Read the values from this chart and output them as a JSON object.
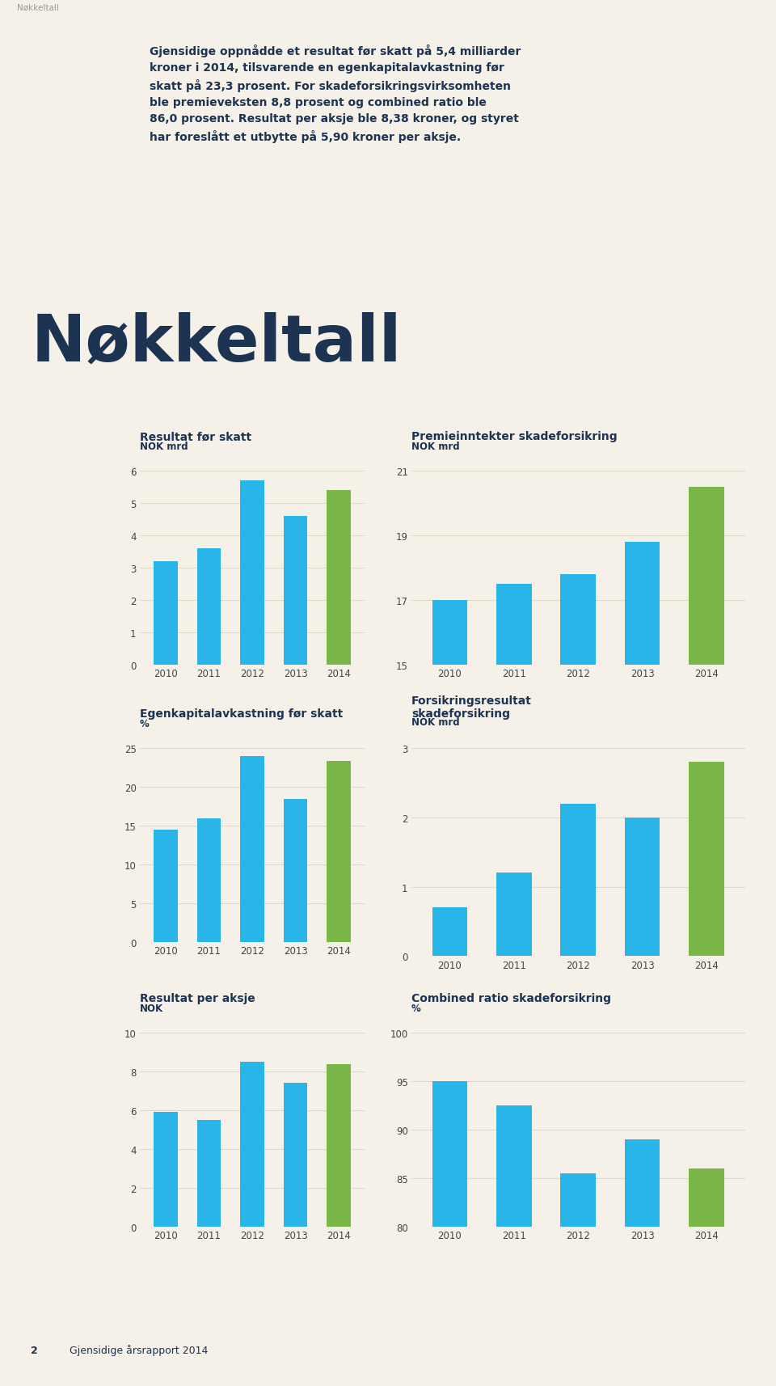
{
  "bg_color": "#f5f0e8",
  "text_color": "#1d3352",
  "bar_blue": "#29b5e8",
  "bar_green": "#7ab648",
  "page_label": "Nøkkeltall",
  "main_title": "Nøkkeltall",
  "intro_text": "Gjensidige oppnådde et resultat før skatt på 5,4 milliarder\nkroner i 2014, tilsvarende en egenkapitalavkastning før\nskatt på 23,3 prosent. For skadeforsikringsvirksomheten\nble premieveksten 8,8 prosent og combined ratio ble\n86,0 prosent. Resultat per aksje ble 8,38 kroner, og styret\nhar foreslått et utbytte på 5,90 kroner per aksje.",
  "years": [
    "2010",
    "2011",
    "2012",
    "2013",
    "2014"
  ],
  "charts": [
    {
      "title": "Resultat før skatt",
      "unit": "NOK mrd",
      "values": [
        3.2,
        3.6,
        5.7,
        4.6,
        5.4
      ],
      "ylim": [
        0,
        6
      ],
      "yticks": [
        0,
        1,
        2,
        3,
        4,
        5,
        6
      ]
    },
    {
      "title": "Premieinntekter skadeforsikring",
      "unit": "NOK mrd",
      "values": [
        17.0,
        17.5,
        17.8,
        18.8,
        20.5
      ],
      "ylim": [
        15,
        21
      ],
      "yticks": [
        15,
        17,
        19,
        21
      ]
    },
    {
      "title": "Egenkapitalavkastning før skatt",
      "unit": "%",
      "values": [
        14.5,
        16.0,
        24.0,
        18.5,
        23.3
      ],
      "ylim": [
        0,
        25
      ],
      "yticks": [
        0,
        5,
        10,
        15,
        20,
        25
      ]
    },
    {
      "title": "Forsikringsresultat\nskadeforsikring",
      "unit": "NOK mrd",
      "values": [
        0.7,
        1.2,
        2.2,
        2.0,
        2.8
      ],
      "ylim": [
        0,
        3
      ],
      "yticks": [
        0,
        1,
        2,
        3
      ]
    },
    {
      "title": "Resultat per aksje",
      "unit": "NOK",
      "values": [
        5.9,
        5.5,
        8.5,
        7.4,
        8.38
      ],
      "ylim": [
        0,
        10
      ],
      "yticks": [
        0,
        2,
        4,
        6,
        8,
        10
      ]
    },
    {
      "title": "Combined ratio skadeforsikring",
      "unit": "%",
      "values": [
        95.0,
        92.5,
        85.5,
        89.0,
        86.0
      ],
      "ylim": [
        80,
        100
      ],
      "yticks": [
        80,
        85,
        90,
        95,
        100
      ]
    }
  ],
  "page_number": "2",
  "footer_text": "Gjensidige årsrapport 2014",
  "grid_color": "#d8d4c0",
  "tick_color": "#555555"
}
